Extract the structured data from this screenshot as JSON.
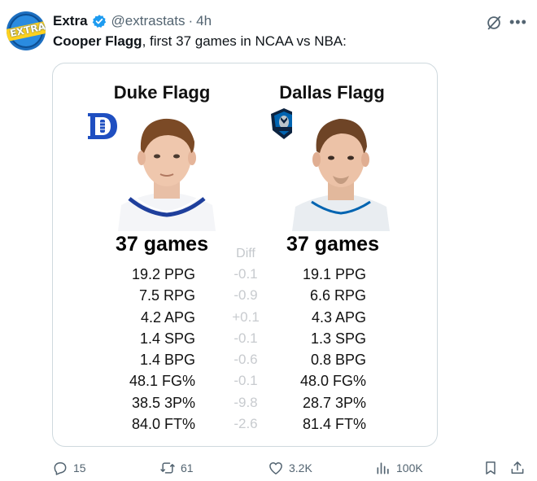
{
  "post": {
    "display_name": "Extra",
    "handle": "@extrastats",
    "separator": "·",
    "time": "4h",
    "avatar_label": "EXTRA",
    "text_bold": "Cooper Flagg",
    "text_rest": ", first 37 games in NCAA vs NBA:"
  },
  "card": {
    "left_title": "Duke Flagg",
    "right_title": "Dallas Flagg",
    "left_games": "37 games",
    "right_games": "37 games",
    "diff_header": "Diff",
    "rows": [
      {
        "left": "19.2 PPG",
        "diff": "-0.1",
        "right": "19.1 PPG"
      },
      {
        "left": "7.5 RPG",
        "diff": "-0.9",
        "right": "6.6 RPG"
      },
      {
        "left": "4.2 APG",
        "diff": "+0.1",
        "right": "4.3 APG"
      },
      {
        "left": "1.4 SPG",
        "diff": "-0.1",
        "right": "1.3 SPG"
      },
      {
        "left": "1.4 BPG",
        "diff": "-0.6",
        "right": "0.8 BPG"
      },
      {
        "left": "48.1 FG%",
        "diff": "-0.1",
        "right": "48.0 FG%"
      },
      {
        "left": "38.5 3P%",
        "diff": "-9.8",
        "right": "28.7 3P%"
      },
      {
        "left": "84.0 FT%",
        "diff": "-2.6",
        "right": "81.4 FT%"
      }
    ]
  },
  "actions": {
    "replies": "15",
    "reposts": "61",
    "likes": "3.2K",
    "views": "100K"
  },
  "icons": {
    "verified": "verified-badge-icon",
    "grok": "grok-icon",
    "more": "more-icon",
    "reply": "reply-icon",
    "repost": "repost-icon",
    "like": "heart-icon",
    "views": "views-icon",
    "bookmark": "bookmark-icon",
    "share": "share-icon"
  },
  "colors": {
    "accent": "#1d9bf0",
    "secondary_text": "#536471",
    "duke_blue": "#1f4fc1",
    "mavs_navy": "#0c2340"
  }
}
